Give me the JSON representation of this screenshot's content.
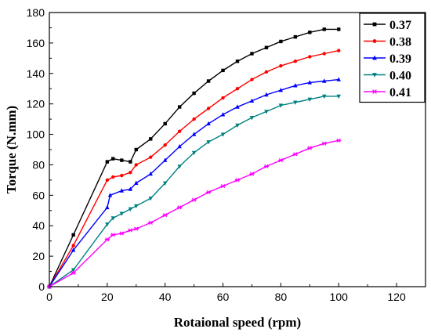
{
  "chart_data": {
    "type": "line",
    "xlabel": "Rotaional speed (rpm)",
    "ylabel": "Torque (N.mm)",
    "xlim": [
      0,
      130
    ],
    "ylim": [
      0,
      180
    ],
    "xticks": [
      0,
      20,
      40,
      60,
      80,
      100,
      120
    ],
    "yticks": [
      0,
      20,
      40,
      60,
      80,
      100,
      120,
      140,
      160,
      180
    ],
    "grid": false,
    "legend_position": "top-right",
    "series": [
      {
        "name": "0.37",
        "color": "#000000",
        "marker": "square",
        "x": [
          0,
          8.3,
          20,
          22,
          25,
          28,
          30,
          35,
          40,
          45,
          50,
          55,
          60,
          65,
          70,
          75,
          80,
          85,
          90,
          95,
          100
        ],
        "y": [
          0,
          34,
          82,
          84,
          83,
          82,
          90,
          97,
          107,
          118,
          127,
          135,
          142,
          148,
          153,
          157,
          161,
          164,
          167,
          169,
          169
        ]
      },
      {
        "name": "0.38",
        "color": "#ff0000",
        "marker": "circle",
        "x": [
          0,
          8.3,
          20,
          22,
          25,
          28,
          30,
          35,
          40,
          45,
          50,
          55,
          60,
          65,
          70,
          75,
          80,
          85,
          90,
          95,
          100
        ],
        "y": [
          0,
          27,
          70,
          72,
          73,
          75,
          80,
          85,
          93,
          102,
          110,
          117,
          124,
          130,
          136,
          141,
          145,
          148,
          151,
          153,
          155
        ]
      },
      {
        "name": "0.39",
        "color": "#0000ff",
        "marker": "triangle-up",
        "x": [
          0,
          8.3,
          20,
          21,
          25,
          28,
          30,
          35,
          40,
          45,
          50,
          55,
          60,
          65,
          70,
          75,
          80,
          85,
          90,
          95,
          100
        ],
        "y": [
          0,
          24,
          52,
          60,
          63,
          64,
          68,
          74,
          83,
          92,
          100,
          107,
          113,
          118,
          122,
          126,
          129,
          132,
          134,
          135,
          136
        ]
      },
      {
        "name": "0.40",
        "color": "#008080",
        "marker": "triangle-down",
        "x": [
          0,
          8.3,
          20,
          22,
          25,
          28,
          30,
          35,
          40,
          45,
          50,
          55,
          60,
          65,
          70,
          75,
          80,
          85,
          90,
          95,
          100
        ],
        "y": [
          0,
          11,
          41,
          45,
          48,
          51,
          53,
          58,
          68,
          79,
          88,
          95,
          100,
          106,
          111,
          115,
          119,
          121,
          123,
          125,
          125
        ]
      },
      {
        "name": "0.41",
        "color": "#ff00ff",
        "marker": "star",
        "x": [
          0,
          8.3,
          20,
          22,
          25,
          28,
          30,
          35,
          40,
          45,
          50,
          55,
          60,
          65,
          70,
          75,
          80,
          85,
          90,
          95,
          100
        ],
        "y": [
          0,
          9,
          31,
          34,
          35,
          37,
          38,
          42,
          47,
          52,
          57,
          62,
          66,
          70,
          74,
          79,
          83,
          87,
          91,
          94,
          96
        ]
      }
    ]
  }
}
